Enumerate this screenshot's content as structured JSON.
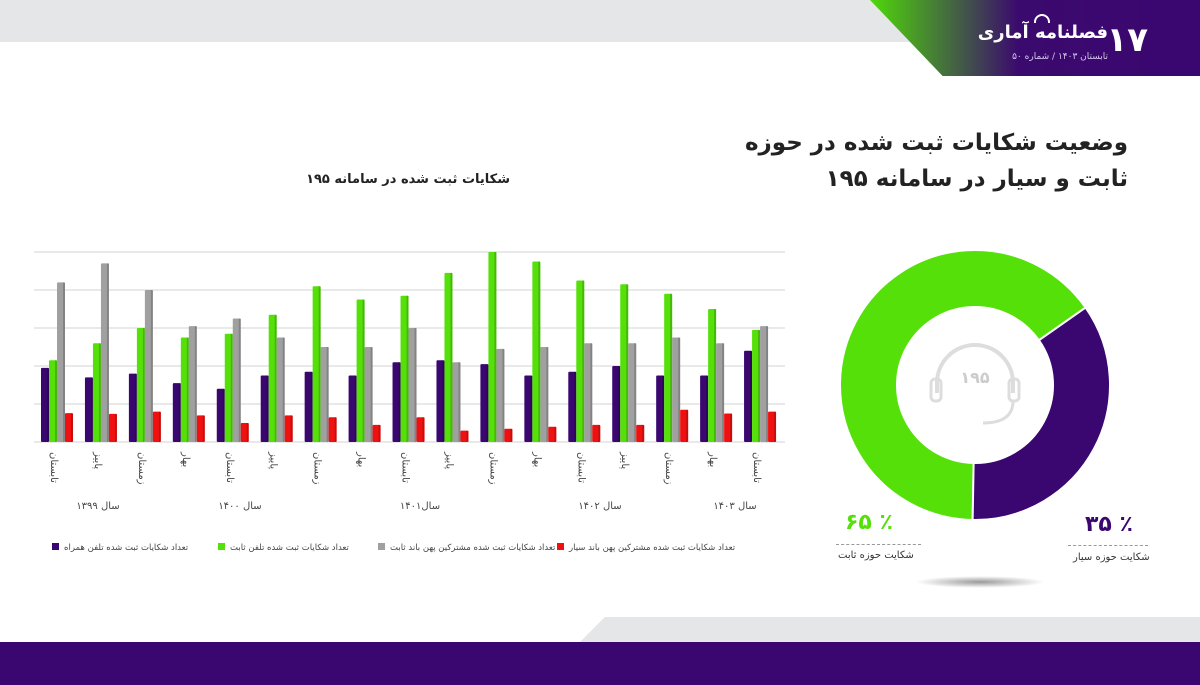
{
  "header": {
    "issue_number": "۱۷",
    "magazine": "فصلنامه آماری",
    "subtitle": "تابستان ۱۴۰۳ / شماره ۵۰"
  },
  "page_title": "وضعیت شکایات ثبت شده در حوزه ثابت و سیار در سامانه ۱۹۵",
  "donut": {
    "center_text": "۱۹۵",
    "center_icon": "headset-icon",
    "slices": [
      {
        "label": "شکایت حوزه ثابت",
        "percent_text": "۶۵ ٪",
        "value": 65,
        "color": "#55e00a"
      },
      {
        "label": "شکایت حوزه سیار",
        "percent_text": "۳۵ ٪",
        "value": 35,
        "color": "#3a0670"
      }
    ]
  },
  "chart_data": {
    "type": "bar",
    "title": "شکایات ثبت شده در سامانه ۱۹۵",
    "categories": [
      "تابستان",
      "پاییز",
      "زمستان",
      "بهار",
      "تابستان",
      "پاییز",
      "زمستان",
      "بهار",
      "تابستان",
      "پاییز",
      "زمستان",
      "بهار",
      "تابستان",
      "پاییز",
      "زمستان",
      "بهار",
      "تابستان"
    ],
    "year_groups": [
      {
        "label": "سال ۱۳۹۹"
      },
      {
        "label": "سال ۱۴۰۰"
      },
      {
        "label": "سال۱۴۰۱"
      },
      {
        "label": "سال ۱۴۰۲"
      },
      {
        "label": "سال ۱۴۰۳"
      }
    ],
    "ylim": [
      0,
      5
    ],
    "grid": true,
    "y_tick_labels_shown": false,
    "legend_placement": "bottom",
    "series": [
      {
        "name": "تعداد شکایات ثبت شده تلفن همراه",
        "color": "#3a0670",
        "values": [
          1.95,
          1.7,
          1.8,
          1.55,
          1.4,
          1.75,
          1.85,
          1.75,
          2.1,
          2.15,
          2.05,
          1.75,
          1.85,
          2.0,
          1.75,
          1.75,
          2.4
        ]
      },
      {
        "name": "تعداد شکایات ثبت شده تلفن ثابت",
        "color": "#55e00a",
        "values": [
          2.15,
          2.6,
          3.0,
          2.75,
          2.85,
          3.35,
          4.1,
          3.75,
          3.85,
          4.45,
          5.0,
          4.75,
          4.25,
          4.15,
          3.9,
          3.5,
          2.95
        ]
      },
      {
        "name": "تعداد شکایات ثبت شده مشترکین پهن باند ثابت",
        "color": "#a0a0a0",
        "values": [
          4.2,
          4.7,
          4.0,
          3.05,
          3.25,
          2.75,
          2.5,
          2.5,
          3.0,
          2.1,
          2.45,
          2.5,
          2.6,
          2.6,
          2.75,
          2.6,
          3.05
        ]
      },
      {
        "name": "تعداد شکایات ثبت شده مشترکین پهن باند سیار",
        "color": "#f01010",
        "values": [
          0.76,
          0.74,
          0.8,
          0.7,
          0.5,
          0.7,
          0.65,
          0.45,
          0.65,
          0.3,
          0.35,
          0.4,
          0.45,
          0.45,
          0.85,
          0.75,
          0.8
        ]
      }
    ]
  }
}
